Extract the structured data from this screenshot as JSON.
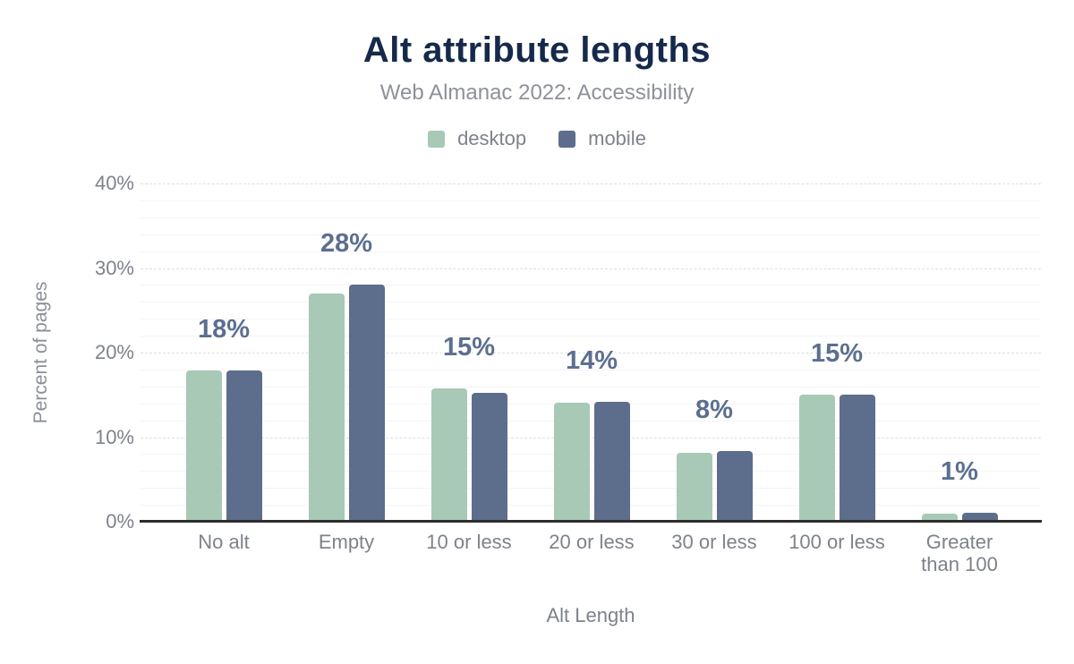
{
  "header": {
    "title": "Alt attribute lengths",
    "subtitle": "Web Almanac 2022: Accessibility"
  },
  "legend": [
    {
      "label": "desktop",
      "color": "#a8c9b6"
    },
    {
      "label": "mobile",
      "color": "#5d6e8c"
    }
  ],
  "chart_data": {
    "type": "bar",
    "title": "Alt attribute lengths",
    "subtitle": "Web Almanac 2022: Accessibility",
    "xlabel": "Alt Length",
    "ylabel": "Percent of pages",
    "ylim": [
      0,
      40
    ],
    "ytick_interval": 10,
    "minor_tick_interval": 2,
    "yticks": [
      "0%",
      "10%",
      "20%",
      "30%",
      "40%"
    ],
    "grid": true,
    "legend_position": "top",
    "categories": [
      "No alt",
      "Empty",
      "10 or less",
      "20 or less",
      "30 or less",
      "100 or less",
      "Greater than 100"
    ],
    "series": [
      {
        "name": "desktop",
        "color": "#a8c9b6",
        "values": [
          17.9,
          27.0,
          15.8,
          14.1,
          8.2,
          15.0,
          1.0
        ]
      },
      {
        "name": "mobile",
        "color": "#5d6e8c",
        "values": [
          17.9,
          28.0,
          15.2,
          14.2,
          8.4,
          15.0,
          1.1
        ]
      }
    ],
    "data_labels": [
      "18%",
      "28%",
      "15%",
      "14%",
      "8%",
      "15%",
      "1%"
    ]
  },
  "colors": {
    "title": "#15294b",
    "subtitle": "#8d919a",
    "axis_text": "#7d828b",
    "data_label": "#5c6f90",
    "axis_line": "#2d2d2d",
    "major_grid": "#dfdfdf",
    "minor_grid": "#f4f4f4",
    "background": "#ffffff"
  }
}
